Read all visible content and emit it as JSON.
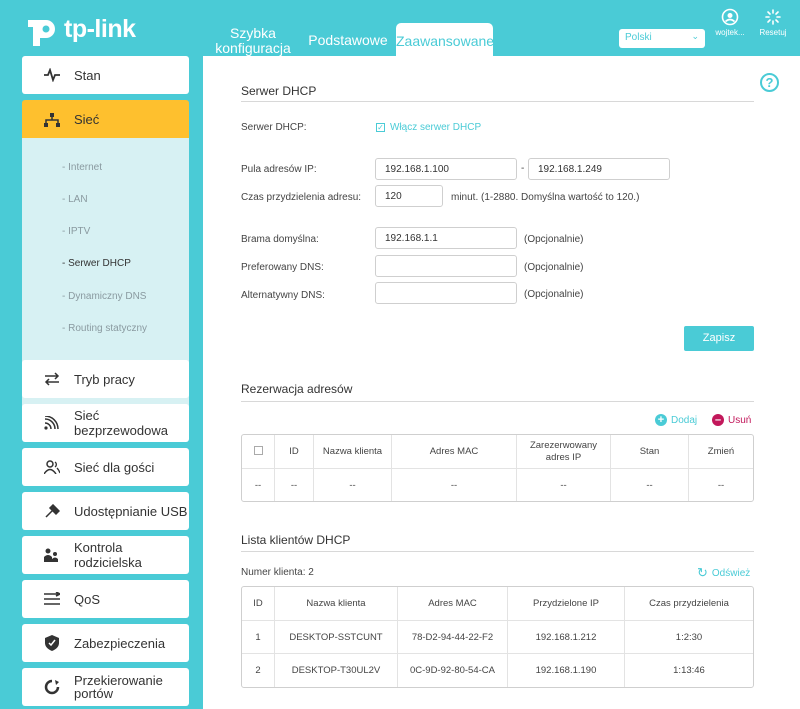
{
  "brand": {
    "name": "tp-link"
  },
  "nav": {
    "tabs": [
      {
        "label": "Szybka konfiguracja"
      },
      {
        "label": "Podstawowe"
      },
      {
        "label": "Zaawansowane"
      }
    ],
    "language": "Polski",
    "user_label": "wojtek...",
    "reset_label": "Resetuj"
  },
  "sidebar": {
    "items": [
      {
        "label": "Stan",
        "icon": "pulse-icon"
      },
      {
        "label": "Sieć",
        "icon": "network-icon"
      },
      {
        "label": "Tryb pracy",
        "icon": "swap-icon"
      },
      {
        "label": "Sieć bezprzewodowa",
        "icon": "wifi-icon"
      },
      {
        "label": "Sieć dla gości",
        "icon": "guests-icon"
      },
      {
        "label": "Udostępnianie USB",
        "icon": "usb-icon"
      },
      {
        "label": "Kontrola rodzicielska",
        "icon": "family-icon"
      },
      {
        "label": "QoS",
        "icon": "qos-icon"
      },
      {
        "label": "Zabezpieczenia",
        "icon": "shield-icon"
      },
      {
        "label": "Przekierowanie portów",
        "icon": "forward-icon"
      }
    ],
    "submenu": [
      {
        "label": "- Internet"
      },
      {
        "label": "- LAN"
      },
      {
        "label": "- IPTV"
      },
      {
        "label": "- Serwer DHCP"
      },
      {
        "label": "- Dynamiczny DNS"
      },
      {
        "label": "- Routing statyczny"
      }
    ]
  },
  "dhcp": {
    "title": "Serwer DHCP",
    "server_label": "Serwer DHCP:",
    "enable_label": "Włącz serwer DHCP",
    "pool_label": "Pula adresów IP:",
    "pool_start": "192.168.1.100",
    "pool_sep": "-",
    "pool_end": "192.168.1.249",
    "lease_label": "Czas przydzielenia adresu:",
    "lease_value": "120",
    "lease_note": "minut. (1-2880. Domyślna wartość to 120.)",
    "gateway_label": "Brama domyślna:",
    "gateway_value": "192.168.1.1",
    "pdns_label": "Preferowany DNS:",
    "pdns_value": "",
    "adns_label": "Alternatywny DNS:",
    "adns_value": "",
    "optional": "(Opcjonalnie)",
    "save_label": "Zapisz"
  },
  "reservation": {
    "title": "Rezerwacja adresów",
    "add_label": "Dodaj",
    "remove_label": "Usuń",
    "columns": [
      "ID",
      "Nazwa klienta",
      "Adres MAC",
      "Zarezerwowany adres IP",
      "Stan",
      "Zmień"
    ],
    "empty": "--"
  },
  "clients": {
    "title": "Lista klientów DHCP",
    "count_label": "Numer klienta:",
    "count_value": "2",
    "refresh_label": "Odśwież",
    "columns": [
      "ID",
      "Nazwa klienta",
      "Adres MAC",
      "Przydzielone IP",
      "Czas przydzielenia"
    ],
    "rows": [
      [
        "1",
        "DESKTOP-SSTCUNT",
        "78-D2-94-44-22-F2",
        "192.168.1.212",
        "1:2:30"
      ],
      [
        "2",
        "DESKTOP-T30UL2V",
        "0C-9D-92-80-54-CA",
        "192.168.1.190",
        "1:13:46"
      ]
    ]
  },
  "colors": {
    "accent": "#4acbd6",
    "active": "#fec02e",
    "submenu_bg": "#d7f1f3",
    "danger": "#c2185b"
  }
}
